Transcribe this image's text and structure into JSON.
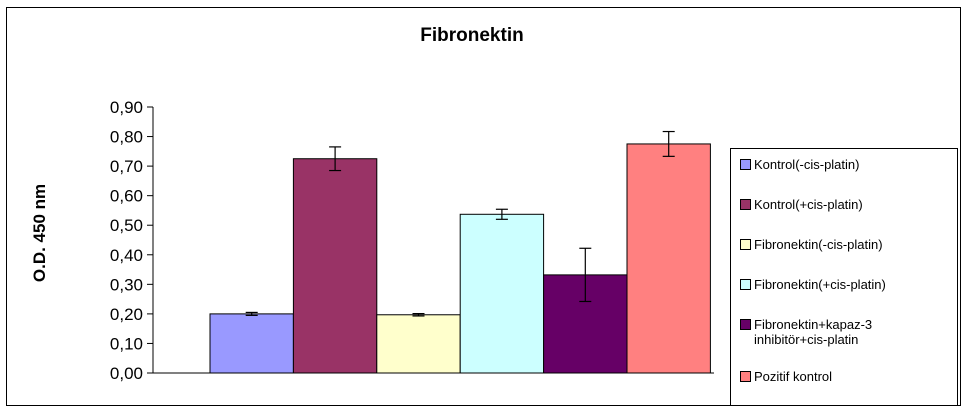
{
  "chart_data": {
    "type": "bar",
    "title": "Fibronektin",
    "ylabel": "O.D. 450 nm",
    "xlabel": "",
    "ylim": [
      0,
      0.9
    ],
    "yticks": [
      "0,00",
      "0,10",
      "0,20",
      "0,30",
      "0,40",
      "0,50",
      "0,60",
      "0,70",
      "0,80",
      "0,90"
    ],
    "grid": false,
    "legend_position": "right",
    "series": [
      {
        "name": "Kontrol(-cis-platin)",
        "value": 0.2,
        "error": 0.005,
        "color": "#9999ff"
      },
      {
        "name": "Kontrol(+cis-platin)",
        "value": 0.725,
        "error": 0.04,
        "color": "#993366"
      },
      {
        "name": "Fibronektin(-cis-platin)",
        "value": 0.197,
        "error": 0.004,
        "color": "#ffffcc"
      },
      {
        "name": "Fibronektin(+cis-platin)",
        "value": 0.537,
        "error": 0.017,
        "color": "#ccffff"
      },
      {
        "name": "Fibronektin+kapaz-3 inhibitör+cis-platin",
        "value": 0.332,
        "error": 0.09,
        "color": "#660066"
      },
      {
        "name": "Pozitif kontrol",
        "value": 0.775,
        "error": 0.042,
        "color": "#ff8080"
      }
    ]
  }
}
